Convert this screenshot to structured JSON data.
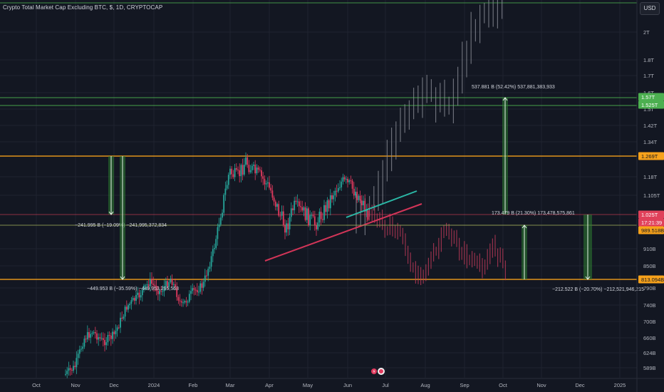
{
  "header": {
    "title": "Crypto Total Market Cap Excluding BTC, $, 1D, CRYPTOCAP",
    "currency": "USD"
  },
  "colors": {
    "background": "#131722",
    "grid": "#1f2330",
    "text": "#b2b5be",
    "up_candle": "#26a69a",
    "down_candle": "#e23a5e",
    "ghost_candle": "#8a8d96",
    "ghost_down": "#c23a5a",
    "orange_level": "#f7a21b",
    "green_level": "#4caf50",
    "red_level": "#e0405a",
    "trend_teal": "#2bb8a6",
    "trend_red": "#d33558"
  },
  "chart_data": {
    "type": "candlestick",
    "symbol": "CRYPTOCAP:TOTAL2",
    "y_axis": {
      "scale": "log",
      "tick_labels": [
        "2T",
        "1.8T",
        "1.7T",
        "1.6T",
        "1.5T",
        "1.42T",
        "1.34T",
        "1.18T",
        "1.105T",
        "910B",
        "850B",
        "790B",
        "740B",
        "700B",
        "660B",
        "624B",
        "589B"
      ]
    },
    "x_axis": {
      "tick_labels": [
        "Oct",
        "Nov",
        "Dec",
        "2024",
        "Feb",
        "Mar",
        "Apr",
        "May",
        "Jun",
        "Jul",
        "Aug",
        "Sep",
        "Oct",
        "Nov",
        "Dec",
        "2025"
      ]
    },
    "price_labels": [
      {
        "text": "1.57T",
        "style": "green"
      },
      {
        "text": "1.525T",
        "style": "green"
      },
      {
        "text": "1.269T",
        "style": "orange"
      },
      {
        "text": "1.025T",
        "style": "red"
      },
      {
        "text": "17:21:39",
        "style": "red"
      },
      {
        "text": "989.518B",
        "style": "orange"
      },
      {
        "text": "813.094B",
        "style": "orange"
      }
    ],
    "horizontal_levels": [
      {
        "value_label": "1.57T",
        "color": "green"
      },
      {
        "value_label": "1.525T",
        "color": "green"
      },
      {
        "value_label": "1.269T",
        "color": "orange"
      },
      {
        "value_label": "1.025T",
        "color": "red"
      },
      {
        "value_label": "989.518B",
        "color": "olive"
      },
      {
        "value_label": "813.094B",
        "color": "orange"
      }
    ],
    "measurements": [
      {
        "label": "−241.995 B (−19.09%) −241,995,372,834"
      },
      {
        "label": "−449.953 B (−35.59%) −449,953,295,563"
      },
      {
        "label": "537.881 B (52.42%) 537,881,383,933"
      },
      {
        "label": "173.479 B (21.30%) 173,478,575,861"
      },
      {
        "label": "−212.522 B (−20.70%) −212,521,946,215"
      }
    ]
  }
}
